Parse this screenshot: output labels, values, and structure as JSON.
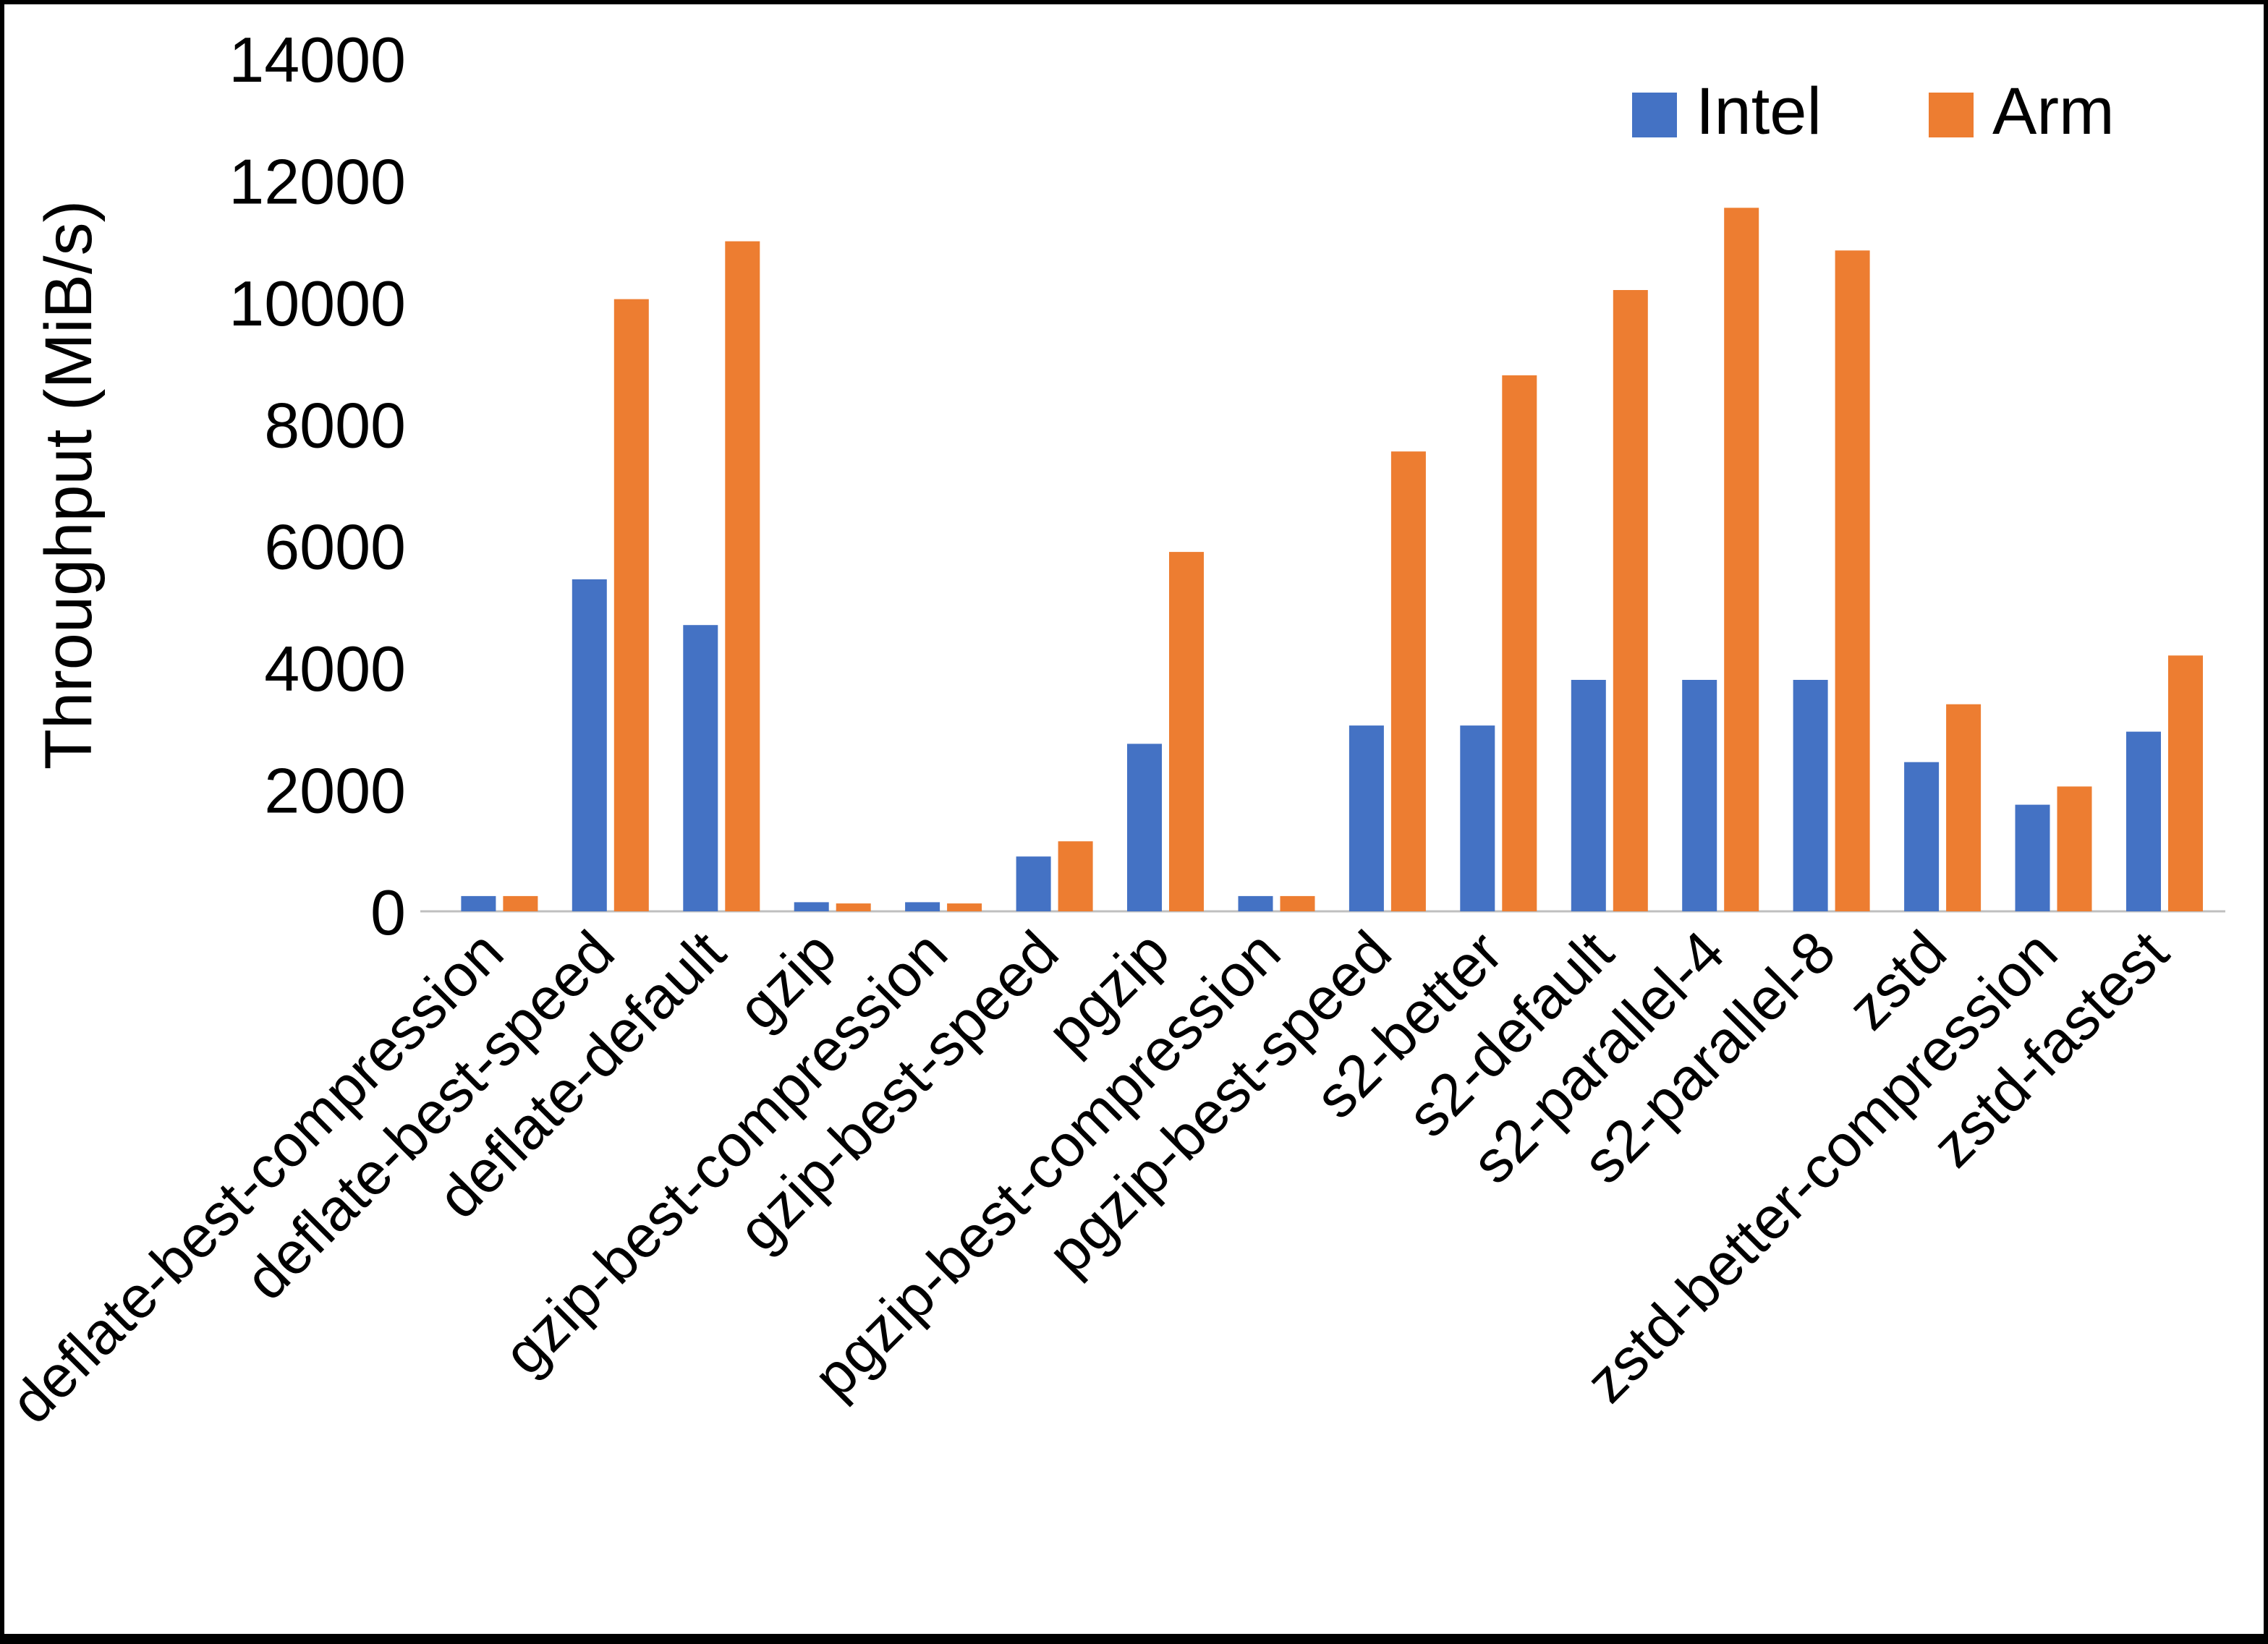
{
  "chart_data": {
    "type": "bar",
    "title": "",
    "xlabel": "",
    "ylabel": "Throughput (MiB/s)",
    "ylim": [
      0,
      14000
    ],
    "ytick_step": 2000,
    "grid": false,
    "legend_position": "top-right",
    "axis_line_color": "#bfbfbf",
    "categories": [
      "deflate-best-compression",
      "deflate-best-speed",
      "deflate-default",
      "gzip",
      "gzip-best-compression",
      "gzip-best-speed",
      "pgzip",
      "pgzip-best-compression",
      "pgzip-best-speed",
      "s2-better",
      "s2-default",
      "s2-parallel-4",
      "s2-parallel-8",
      "zstd",
      "zstd-better-compression",
      "zstd-fastest"
    ],
    "series": [
      {
        "name": "Intel",
        "color": "#4472C4",
        "values": [
          250,
          5450,
          4700,
          150,
          150,
          900,
          2750,
          250,
          3050,
          3050,
          3800,
          3800,
          3800,
          2450,
          1750,
          2950
        ]
      },
      {
        "name": "Arm",
        "color": "#ED7D31",
        "values": [
          250,
          10050,
          11000,
          130,
          130,
          1150,
          5900,
          250,
          7550,
          8800,
          10200,
          11550,
          10850,
          3400,
          2050,
          4200
        ]
      }
    ]
  }
}
